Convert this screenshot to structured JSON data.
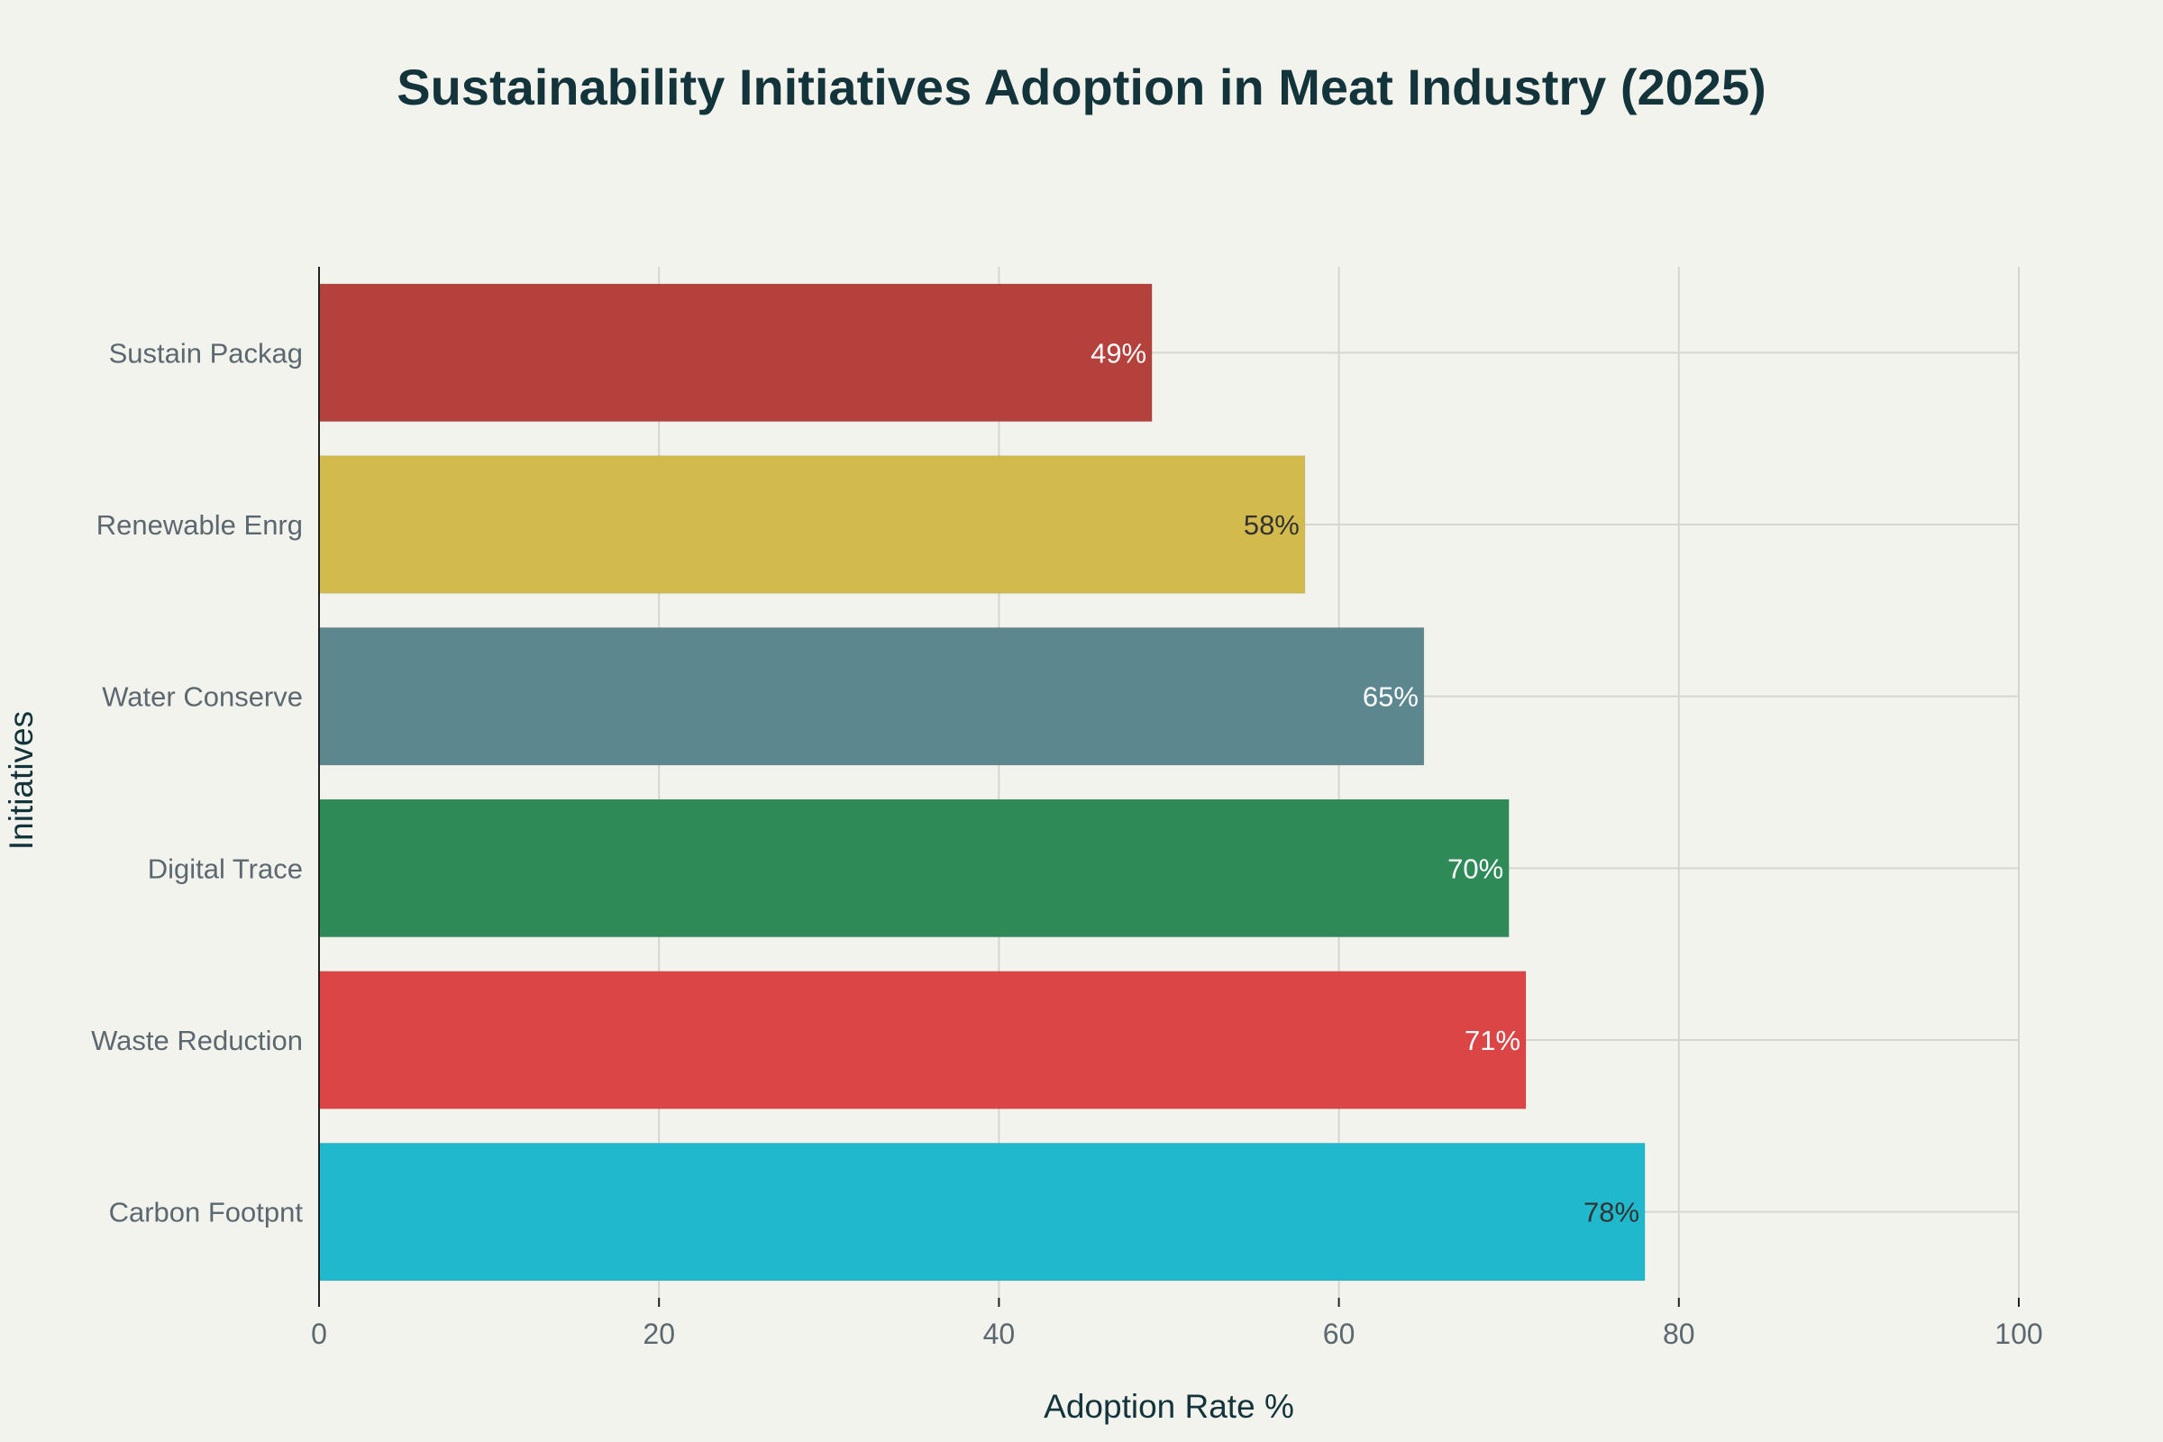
{
  "chart_data": {
    "type": "bar",
    "orientation": "horizontal",
    "title": "Sustainability Initiatives Adoption in Meat Industry (2025)",
    "xlabel": "Adoption Rate %",
    "ylabel": "Initiatives",
    "xlim": [
      0,
      100
    ],
    "xticks": [
      "0",
      "20",
      "40",
      "60",
      "80",
      "100"
    ],
    "xtick_values": [
      0,
      20,
      40,
      60,
      80,
      100
    ],
    "grid": true,
    "categories": [
      "Sustain Packag",
      "Renewable Enrg",
      "Water Conserve",
      "Digital Trace",
      "Waste Reduction",
      "Carbon Footpnt"
    ],
    "values": [
      49,
      58,
      65,
      70,
      71,
      78
    ],
    "data_labels": [
      "49%",
      "58%",
      "65%",
      "70%",
      "71%",
      "78%"
    ],
    "colors": [
      "#b4413c",
      "#d2ba4c",
      "#5d878f",
      "#2e8b57",
      "#db4545",
      "#1fb8cd"
    ],
    "label_colors": [
      "#ffffff",
      "#333333",
      "#ffffff",
      "#ffffff",
      "#ffffff",
      "#333333"
    ]
  }
}
